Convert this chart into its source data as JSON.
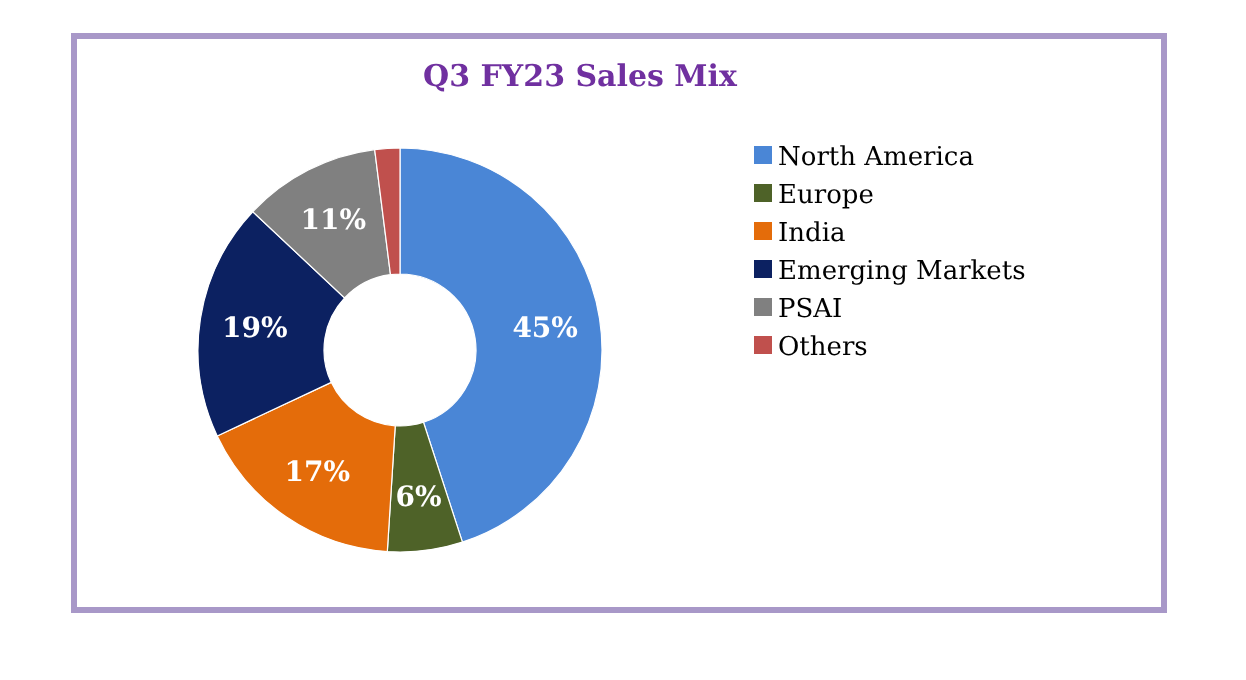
{
  "chart_data": {
    "type": "donut",
    "title": "Q3 FY23 Sales Mix",
    "categories": [
      "North America",
      "Europe",
      "India",
      "Emerging Markets",
      "PSAI",
      "Others"
    ],
    "values": [
      45,
      6,
      17,
      19,
      11,
      2
    ],
    "colors": [
      "#4a86d6",
      "#4e6228",
      "#e46c0a",
      "#0c2161",
      "#808080",
      "#c0504d"
    ],
    "value_labels": [
      "45%",
      "6%",
      "17%",
      "19%",
      "11%",
      null
    ],
    "legend": "right"
  }
}
